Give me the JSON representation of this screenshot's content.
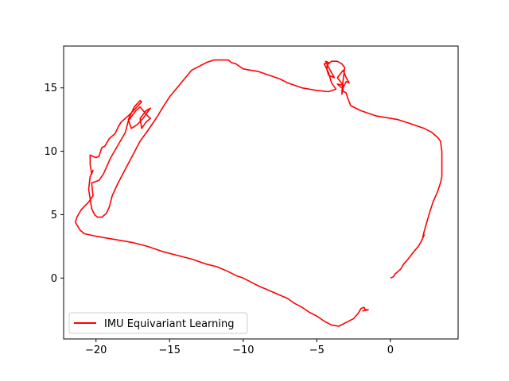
{
  "chart_data": {
    "type": "line",
    "title": "",
    "xlabel": "",
    "ylabel": "",
    "xlim": [
      -22.2,
      4.6
    ],
    "ylim": [
      -4.8,
      18.3
    ],
    "xticks": [
      -20,
      -15,
      -10,
      -5,
      0
    ],
    "yticks": [
      0,
      5,
      10,
      15
    ],
    "grid": false,
    "legend_position": "lower-left",
    "series": [
      {
        "name": "IMU Equivariant Learning",
        "color": "#ff0000",
        "points": [
          [
            0.0,
            0.0
          ],
          [
            0.2,
            0.1
          ],
          [
            0.3,
            0.3
          ],
          [
            0.5,
            0.5
          ],
          [
            0.7,
            0.7
          ],
          [
            0.9,
            1.1
          ],
          [
            1.2,
            1.5
          ],
          [
            1.6,
            2.1
          ],
          [
            1.9,
            2.5
          ],
          [
            2.1,
            2.9
          ],
          [
            2.3,
            3.4
          ],
          [
            2.2,
            3.2
          ],
          [
            2.3,
            3.7
          ],
          [
            2.5,
            4.5
          ],
          [
            2.7,
            5.3
          ],
          [
            2.9,
            6.0
          ],
          [
            3.2,
            6.8
          ],
          [
            3.4,
            7.5
          ],
          [
            3.5,
            8.0
          ],
          [
            3.5,
            9.0
          ],
          [
            3.5,
            10.0
          ],
          [
            3.4,
            10.8
          ],
          [
            3.2,
            11.1
          ],
          [
            2.8,
            11.5
          ],
          [
            2.3,
            11.8
          ],
          [
            1.8,
            12.0
          ],
          [
            1.3,
            12.2
          ],
          [
            0.5,
            12.5
          ],
          [
            0.0,
            12.6
          ],
          [
            -1.0,
            12.8
          ],
          [
            -2.0,
            13.2
          ],
          [
            -2.7,
            13.6
          ],
          [
            -2.9,
            14.2
          ],
          [
            -3.0,
            14.6
          ],
          [
            -3.3,
            14.8
          ],
          [
            -3.0,
            15.5
          ],
          [
            -2.8,
            15.4
          ],
          [
            -3.0,
            15.8
          ],
          [
            -3.2,
            16.4
          ],
          [
            -3.6,
            15.8
          ],
          [
            -3.2,
            15.2
          ],
          [
            -3.6,
            15.3
          ],
          [
            -3.2,
            14.9
          ],
          [
            -3.3,
            14.5
          ],
          [
            -3.2,
            15.7
          ],
          [
            -3.1,
            16.6
          ],
          [
            -3.3,
            16.9
          ],
          [
            -3.6,
            17.1
          ],
          [
            -4.0,
            17.1
          ],
          [
            -4.3,
            16.8
          ],
          [
            -4.3,
            16.4
          ],
          [
            -4.2,
            16.0
          ],
          [
            -3.8,
            15.8
          ],
          [
            -4.1,
            16.4
          ],
          [
            -4.4,
            17.1
          ],
          [
            -4.2,
            17.0
          ],
          [
            -4.5,
            16.9
          ],
          [
            -4.2,
            16.2
          ],
          [
            -4.0,
            15.4
          ],
          [
            -3.7,
            14.9
          ],
          [
            -4.2,
            14.7
          ],
          [
            -5.0,
            14.8
          ],
          [
            -6.0,
            15.0
          ],
          [
            -7.0,
            15.4
          ],
          [
            -7.5,
            15.7
          ],
          [
            -8.0,
            15.9
          ],
          [
            -8.5,
            16.1
          ],
          [
            -9.0,
            16.3
          ],
          [
            -9.5,
            16.4
          ],
          [
            -10.0,
            16.5
          ],
          [
            -10.5,
            16.9
          ],
          [
            -10.8,
            17.0
          ],
          [
            -11.0,
            17.2
          ],
          [
            -11.5,
            17.2
          ],
          [
            -12.0,
            17.2
          ],
          [
            -12.5,
            17.0
          ],
          [
            -13.0,
            16.7
          ],
          [
            -13.5,
            16.4
          ],
          [
            -14.0,
            15.7
          ],
          [
            -14.5,
            15.0
          ],
          [
            -15.0,
            14.3
          ],
          [
            -15.5,
            13.4
          ],
          [
            -15.8,
            12.8
          ],
          [
            -16.2,
            12.1
          ],
          [
            -16.5,
            11.6
          ],
          [
            -17.0,
            10.8
          ],
          [
            -17.5,
            9.7
          ],
          [
            -18.0,
            8.6
          ],
          [
            -18.5,
            7.5
          ],
          [
            -18.9,
            6.5
          ],
          [
            -19.1,
            5.6
          ],
          [
            -19.3,
            5.1
          ],
          [
            -19.6,
            4.8
          ],
          [
            -19.9,
            4.8
          ],
          [
            -20.1,
            5.0
          ],
          [
            -20.3,
            5.5
          ],
          [
            -20.5,
            7.0
          ],
          [
            -20.4,
            8.0
          ],
          [
            -20.2,
            8.5
          ],
          [
            -20.3,
            8.2
          ],
          [
            -20.4,
            9.0
          ],
          [
            -20.4,
            9.7
          ],
          [
            -20.0,
            9.5
          ],
          [
            -19.8,
            9.6
          ],
          [
            -19.6,
            10.3
          ],
          [
            -19.4,
            10.4
          ],
          [
            -19.1,
            11.0
          ],
          [
            -18.7,
            11.4
          ],
          [
            -18.5,
            11.9
          ],
          [
            -18.3,
            12.3
          ],
          [
            -17.8,
            12.8
          ],
          [
            -17.3,
            13.4
          ],
          [
            -16.9,
            13.9
          ],
          [
            -17.0,
            14.0
          ],
          [
            -17.4,
            13.5
          ],
          [
            -17.8,
            12.5
          ],
          [
            -17.6,
            11.8
          ],
          [
            -17.2,
            12.1
          ],
          [
            -16.8,
            12.6
          ],
          [
            -16.5,
            13.1
          ],
          [
            -16.3,
            13.4
          ],
          [
            -16.6,
            13.2
          ],
          [
            -17.0,
            12.6
          ],
          [
            -16.9,
            11.8
          ],
          [
            -16.6,
            12.3
          ],
          [
            -16.3,
            12.6
          ],
          [
            -16.5,
            12.8
          ],
          [
            -17.0,
            13.5
          ],
          [
            -17.3,
            13.2
          ],
          [
            -17.8,
            12.4
          ],
          [
            -18.0,
            11.5
          ],
          [
            -18.5,
            10.5
          ],
          [
            -19.0,
            9.5
          ],
          [
            -19.5,
            8.2
          ],
          [
            -19.8,
            7.7
          ],
          [
            -20.3,
            7.5
          ],
          [
            -20.2,
            6.5
          ],
          [
            -20.5,
            6.0
          ],
          [
            -21.0,
            5.4
          ],
          [
            -21.3,
            4.8
          ],
          [
            -21.4,
            4.4
          ],
          [
            -21.1,
            3.8
          ],
          [
            -20.8,
            3.5
          ],
          [
            -20.0,
            3.3
          ],
          [
            -19.0,
            3.1
          ],
          [
            -17.5,
            2.8
          ],
          [
            -16.5,
            2.5
          ],
          [
            -15.5,
            2.1
          ],
          [
            -14.5,
            1.8
          ],
          [
            -13.5,
            1.5
          ],
          [
            -12.5,
            1.1
          ],
          [
            -11.8,
            0.9
          ],
          [
            -11.0,
            0.5
          ],
          [
            -10.5,
            0.2
          ],
          [
            -10.0,
            0.0
          ],
          [
            -9.5,
            -0.3
          ],
          [
            -9.0,
            -0.6
          ],
          [
            -8.0,
            -1.1
          ],
          [
            -7.0,
            -1.6
          ],
          [
            -6.5,
            -2.0
          ],
          [
            -6.0,
            -2.3
          ],
          [
            -5.5,
            -2.7
          ],
          [
            -5.0,
            -3.0
          ],
          [
            -4.5,
            -3.4
          ],
          [
            -4.0,
            -3.7
          ],
          [
            -3.5,
            -3.8
          ],
          [
            -3.0,
            -3.5
          ],
          [
            -2.5,
            -3.2
          ],
          [
            -2.2,
            -2.8
          ],
          [
            -2.0,
            -2.4
          ],
          [
            -1.8,
            -2.3
          ],
          [
            -1.7,
            -2.5
          ],
          [
            -1.5,
            -2.5
          ],
          [
            -1.9,
            -2.6
          ]
        ]
      }
    ]
  }
}
